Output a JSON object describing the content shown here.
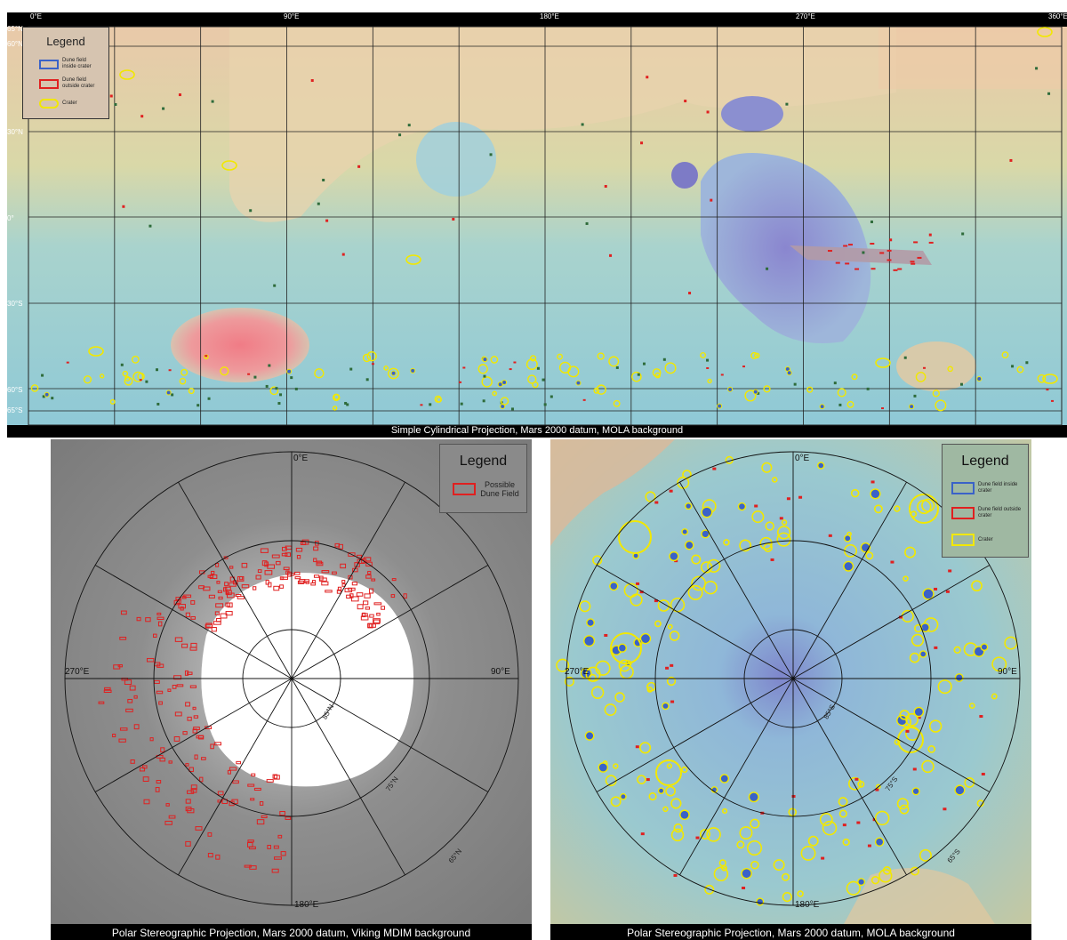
{
  "top_map": {
    "longitude_labels": [
      "0°E",
      "90°E",
      "180°E",
      "270°E",
      "360°E"
    ],
    "latitude_labels": [
      "65°N",
      "60°N",
      "30°N",
      "0°",
      "30°S",
      "60°S",
      "65°S"
    ],
    "legend": {
      "title": "Legend",
      "items": [
        {
          "label": "Dune field inside crater",
          "color": "#3a62c8"
        },
        {
          "label": "Dune field outside crater",
          "color": "#e02020"
        },
        {
          "label": "Crater",
          "color": "#f2e800"
        }
      ]
    },
    "caption": "Simple Cylindrical Projection, Mars 2000 datum, MOLA background"
  },
  "north_polar": {
    "labels": {
      "top": "0°E",
      "left": "270°E",
      "right": "90°E",
      "bottom": "180°E"
    },
    "ring_labels": [
      "85°N",
      "75°N",
      "65°N"
    ],
    "legend": {
      "title": "Legend",
      "items": [
        {
          "label": "Possible Dune Field",
          "color": "#e02020"
        }
      ]
    },
    "caption": "Polar Stereographic Projection, Mars 2000 datum, Viking MDIM background"
  },
  "south_polar": {
    "labels": {
      "top": "0°E",
      "left": "270°E",
      "right": "90°E",
      "bottom": "180°E"
    },
    "ring_labels": [
      "85°S",
      "75°S",
      "65°S"
    ],
    "legend": {
      "title": "Legend",
      "items": [
        {
          "label": "Dune field inside crater",
          "color": "#3a62c8"
        },
        {
          "label": "Dune field outside crater",
          "color": "#e02020"
        },
        {
          "label": "Crater",
          "color": "#f2e800"
        }
      ]
    },
    "caption": "Polar Stereographic Projection, Mars 2000 datum, MOLA background"
  }
}
